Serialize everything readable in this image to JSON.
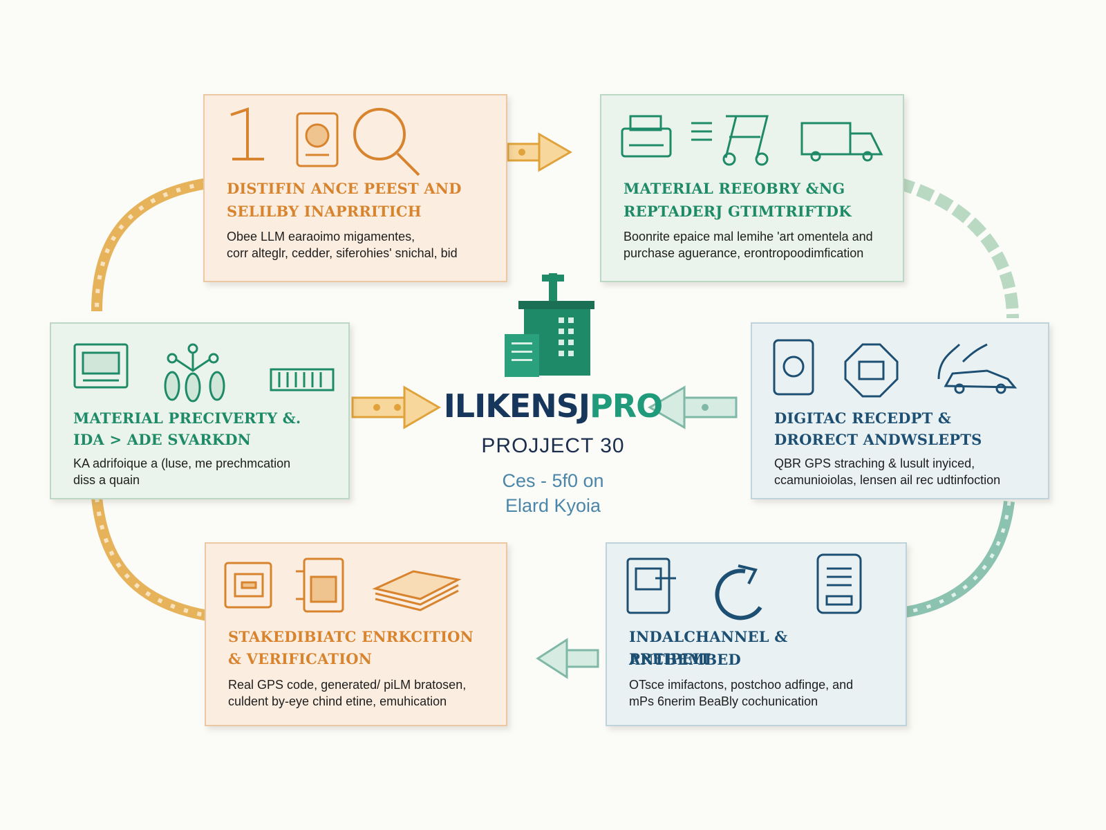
{
  "colors": {
    "orange": "#e0a23a",
    "green": "#1f8a67",
    "teal": "#7fb8a6",
    "navy": "#17365c"
  },
  "center": {
    "logo_part1": "ILIKENSJ",
    "logo_part2": "PRO",
    "subtitle": "PROJJECT 30",
    "line1": "Ces - 5f0 on",
    "line2": "Elard Kyoia"
  },
  "cards": {
    "top_left": {
      "title1": "DISTIFIN ANCE PEEST AND",
      "title2": "SELILBY INAPRRITICH",
      "desc1": "Obee LLM earaoimo migamentes,",
      "desc2": "corr alteglr, cedder, siferohies' snichal, bid"
    },
    "top_right": {
      "title1": "MATERIAL REEOBRY &NG",
      "title2": "REPTADERJ GTIMTRIFTDK",
      "desc1": "Boonrite epaice mal lemihe 'art omentela and",
      "desc2": "purchase aguerance, erontropoodimfication"
    },
    "mid_left": {
      "title1": "MATERIAL PRECIVERTY &.",
      "title2": "IDA > ADE SVARKDN",
      "desc1": "KA adrifoique a (luse, me prechmcation",
      "desc2": "diss a quain"
    },
    "mid_right": {
      "title1": "DIGITAC RECEDPT &",
      "title2": "DRORECT ANDWSLEPTS",
      "desc1": "QBR GPS straching & lusult inyiced,",
      "desc2": "ccamunioiolas, lensen ail rec udtinfoction"
    },
    "bottom_left": {
      "title1": "STAKEDIBIATC ENRKCITION",
      "title2": "& VERIFICATION",
      "desc1": "Real GPS code, generated/ piLM bratosen,",
      "desc2": "culdent by-eye chind etine, emuhication"
    },
    "bottom_right": {
      "title1": "INDALCHANNEL & ANTBEMBED",
      "title2": "PREIPEIT",
      "desc1": "OTsce imifactons, postchoo adfinge, and",
      "desc2": "mPs 6nerim BeaBly cochunication"
    }
  },
  "icons": {
    "top_left": [
      "number-one-icon",
      "id-badge-icon",
      "magnifier-icon"
    ],
    "top_right": [
      "printer-icon",
      "machine-icon",
      "truck-icon"
    ],
    "mid_left": [
      "monitor-icon",
      "network-icon",
      "barcode-icon"
    ],
    "mid_right": [
      "tablet-icon",
      "chip-icon",
      "car-icon"
    ],
    "bottom_left": [
      "safe-icon",
      "qr-badge-icon",
      "papers-icon"
    ],
    "bottom_right": [
      "device-icon",
      "refresh-icon",
      "document-icon"
    ]
  }
}
